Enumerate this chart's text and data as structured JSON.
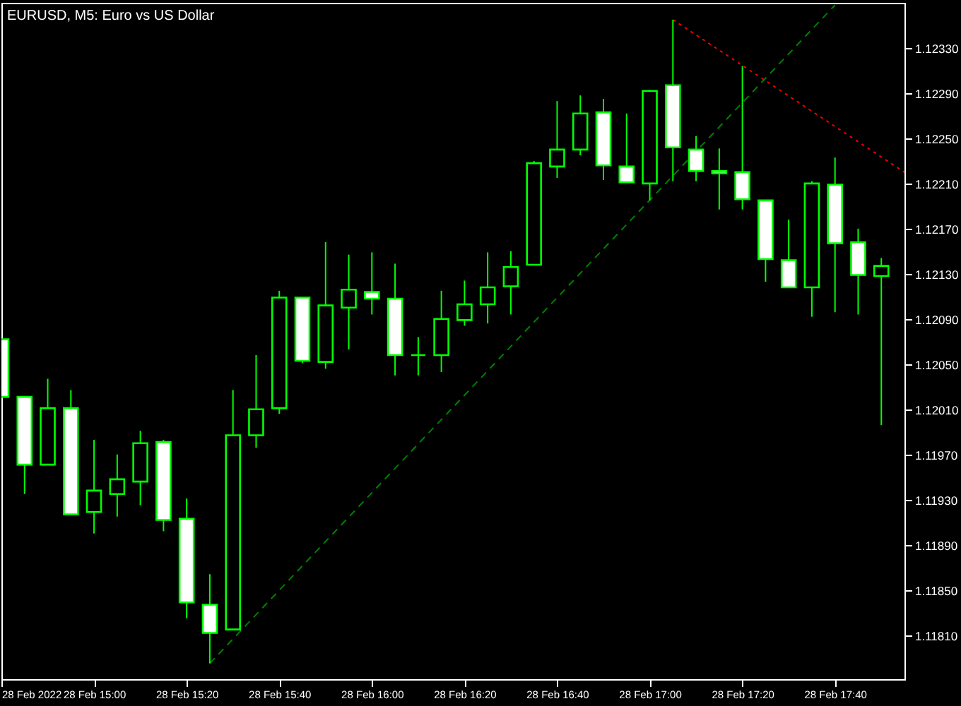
{
  "chart_data": {
    "type": "candlestick",
    "title": "EURUSD, M5: Euro vs US Dollar",
    "x": [
      "2022-02-28T14:40",
      "2022-02-28T14:45",
      "2022-02-28T14:50",
      "2022-02-28T14:55",
      "2022-02-28T15:00",
      "2022-02-28T15:05",
      "2022-02-28T15:10",
      "2022-02-28T15:15",
      "2022-02-28T15:20",
      "2022-02-28T15:25",
      "2022-02-28T15:30",
      "2022-02-28T15:35",
      "2022-02-28T15:40",
      "2022-02-28T15:45",
      "2022-02-28T15:50",
      "2022-02-28T15:55",
      "2022-02-28T16:00",
      "2022-02-28T16:05",
      "2022-02-28T16:10",
      "2022-02-28T16:15",
      "2022-02-28T16:20",
      "2022-02-28T16:25",
      "2022-02-28T16:30",
      "2022-02-28T16:35",
      "2022-02-28T16:40",
      "2022-02-28T16:45",
      "2022-02-28T16:50",
      "2022-02-28T16:55",
      "2022-02-28T17:00",
      "2022-02-28T17:05",
      "2022-02-28T17:10",
      "2022-02-28T17:15",
      "2022-02-28T17:20",
      "2022-02-28T17:25",
      "2022-02-28T17:30",
      "2022-02-28T17:35",
      "2022-02-28T17:40",
      "2022-02-28T17:45",
      "2022-02-28T17:50"
    ],
    "ohlc": [
      [
        1.12072,
        1.12072,
        1.12021,
        1.12021
      ],
      [
        1.12021,
        1.12021,
        1.11935,
        1.11961
      ],
      [
        1.11961,
        1.12037,
        1.11961,
        1.12011
      ],
      [
        1.12011,
        1.12027,
        1.11917,
        1.11917
      ],
      [
        1.11919,
        1.11983,
        1.119,
        1.11938
      ],
      [
        1.11935,
        1.1197,
        1.11915,
        1.11948
      ],
      [
        1.11946,
        1.11991,
        1.11925,
        1.1198
      ],
      [
        1.11981,
        1.11983,
        1.11902,
        1.11912
      ],
      [
        1.11913,
        1.11931,
        1.11825,
        1.11839
      ],
      [
        1.11837,
        1.11864,
        1.11785,
        1.11812
      ],
      [
        1.11815,
        1.12027,
        1.11815,
        1.11987
      ],
      [
        1.11987,
        1.12058,
        1.11976,
        1.1201
      ],
      [
        1.12011,
        1.12115,
        1.12006,
        1.12109
      ],
      [
        1.12109,
        1.12109,
        1.12051,
        1.12053
      ],
      [
        1.12052,
        1.12158,
        1.12046,
        1.12102
      ],
      [
        1.121,
        1.12147,
        1.12063,
        1.12116
      ],
      [
        1.12114,
        1.12149,
        1.12094,
        1.12108
      ],
      [
        1.12108,
        1.12139,
        1.1204,
        1.12058
      ],
      [
        1.12058,
        1.12074,
        1.1204,
        1.12058
      ],
      [
        1.12058,
        1.12115,
        1.12043,
        1.1209
      ],
      [
        1.12089,
        1.12124,
        1.12084,
        1.12103
      ],
      [
        1.12103,
        1.12149,
        1.12086,
        1.12118
      ],
      [
        1.12119,
        1.1215,
        1.12094,
        1.12136
      ],
      [
        1.12138,
        1.1223,
        1.12138,
        1.12228
      ],
      [
        1.12225,
        1.12283,
        1.12215,
        1.1224
      ],
      [
        1.1224,
        1.12288,
        1.12235,
        1.12272
      ],
      [
        1.12273,
        1.12285,
        1.12213,
        1.12226
      ],
      [
        1.12225,
        1.12272,
        1.12211,
        1.12211
      ],
      [
        1.1221,
        1.12293,
        1.12195,
        1.12292
      ],
      [
        1.12297,
        1.12355,
        1.12212,
        1.12242
      ],
      [
        1.1224,
        1.12252,
        1.12212,
        1.12221
      ],
      [
        1.12221,
        1.12241,
        1.12187,
        1.12219
      ],
      [
        1.1222,
        1.12314,
        1.12187,
        1.12196
      ],
      [
        1.12195,
        1.12195,
        1.12123,
        1.12143
      ],
      [
        1.12142,
        1.12178,
        1.12118,
        1.12118
      ],
      [
        1.12118,
        1.12212,
        1.12092,
        1.1221
      ],
      [
        1.12209,
        1.12233,
        1.12096,
        1.12157
      ],
      [
        1.12158,
        1.1217,
        1.12094,
        1.12129
      ],
      [
        1.12128,
        1.12144,
        1.11996,
        1.12137
      ]
    ],
    "color": "#00ff00",
    "colors": [
      "#ffffff",
      "#ffffff",
      "#000000",
      "#ffffff",
      "#000000",
      "#000000",
      "#000000",
      "#ffffff",
      "#ffffff",
      "#ffffff",
      "#000000",
      "#000000",
      "#000000",
      "#ffffff",
      "#000000",
      "#000000",
      "#ffffff",
      "#ffffff",
      "#00ff00",
      "#000000",
      "#000000",
      "#000000",
      "#000000",
      "#000000",
      "#000000",
      "#000000",
      "#ffffff",
      "#ffffff",
      "#000000",
      "#ffffff",
      "#ffffff",
      "#ffffff",
      "#ffffff",
      "#ffffff",
      "#ffffff",
      "#000000",
      "#ffffff",
      "#ffffff",
      "#000000"
    ],
    "series": [
      {
        "type": "line",
        "x": [
          "2022-02-28T15:25",
          "2022-02-28T17:40"
        ],
        "values": [
          1.11785,
          1.12368
        ],
        "color": "#008000",
        "line_style": "dashed"
      },
      {
        "type": "line",
        "x": [
          "2022-02-28T17:05",
          "2022-02-28T17:55"
        ],
        "values": [
          1.12355,
          1.1222
        ],
        "color": "#ff0000",
        "line_style": "dotted"
      }
    ],
    "xlim": [
      "2022-02-28T14:40",
      "2022-02-28T17:55"
    ],
    "ylim": [
      1.11771,
      1.1237
    ],
    "xticks": [
      {
        "value": "2022-02-28T14:40",
        "label": "28 Feb 2022"
      },
      {
        "value": "2022-02-28T15:00",
        "label": "28 Feb 15:00"
      },
      {
        "value": "2022-02-28T15:20",
        "label": "28 Feb 15:20"
      },
      {
        "value": "2022-02-28T15:40",
        "label": "28 Feb 15:40"
      },
      {
        "value": "2022-02-28T16:00",
        "label": "28 Feb 16:00"
      },
      {
        "value": "2022-02-28T16:20",
        "label": "28 Feb 16:20"
      },
      {
        "value": "2022-02-28T16:40",
        "label": "28 Feb 16:40"
      },
      {
        "value": "2022-02-28T17:00",
        "label": "28 Feb 17:00"
      },
      {
        "value": "2022-02-28T17:20",
        "label": "28 Feb 17:20"
      },
      {
        "value": "2022-02-28T17:40",
        "label": "28 Feb 17:40"
      }
    ],
    "yticks": [
      {
        "value": 1.1181,
        "label": "1.11810"
      },
      {
        "value": 1.1185,
        "label": "1.11850"
      },
      {
        "value": 1.1189,
        "label": "1.11890"
      },
      {
        "value": 1.1193,
        "label": "1.11930"
      },
      {
        "value": 1.1197,
        "label": "1.11970"
      },
      {
        "value": 1.1201,
        "label": "1.12010"
      },
      {
        "value": 1.1205,
        "label": "1.12050"
      },
      {
        "value": 1.1209,
        "label": "1.12090"
      },
      {
        "value": 1.1213,
        "label": "1.12130"
      },
      {
        "value": 1.1217,
        "label": "1.12170"
      },
      {
        "value": 1.1221,
        "label": "1.12210"
      },
      {
        "value": 1.1225,
        "label": "1.12250"
      },
      {
        "value": 1.1229,
        "label": "1.12290"
      },
      {
        "value": 1.1233,
        "label": "1.12330"
      }
    ],
    "grid": false
  }
}
